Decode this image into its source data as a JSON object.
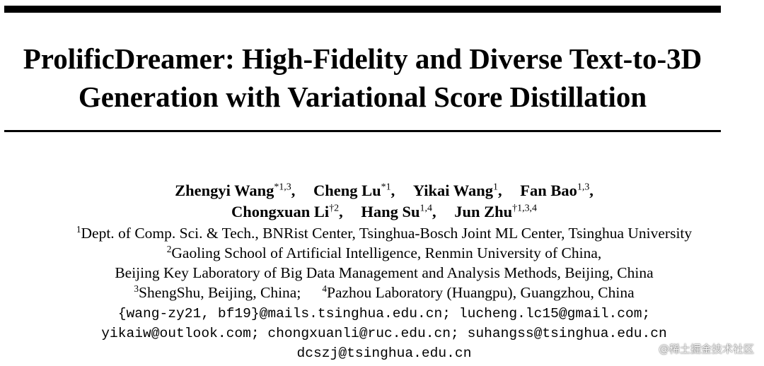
{
  "paper": {
    "title_lines": [
      "ProlificDreamer: High-Fidelity and Diverse Text-to-3D",
      "Generation with Variational Score Distillation"
    ],
    "author_lines": [
      [
        {
          "name": "Zhengyi Wang",
          "sup": "*1,3"
        },
        {
          "name": "Cheng Lu",
          "sup": "*1"
        },
        {
          "name": "Yikai Wang",
          "sup": "1"
        },
        {
          "name": "Fan Bao",
          "sup": "1,3"
        }
      ],
      [
        {
          "name": "Chongxuan Li",
          "sup": "†2"
        },
        {
          "name": "Hang Su",
          "sup": "1,4"
        },
        {
          "name": "Jun Zhu",
          "sup": "†1,3,4"
        }
      ]
    ],
    "affiliations": {
      "a1_sup": "1",
      "a1": "Dept. of Comp. Sci. & Tech., BNRist Center, Tsinghua-Bosch Joint ML Center, Tsinghua University",
      "a2_sup": "2",
      "a2": "Gaoling School of Artificial Intelligence, Renmin University of China,",
      "a2_cont": "Beijing Key Laboratory of Big Data Management and Analysis Methods, Beijing, China",
      "a3_sup": "3",
      "a3": "ShengShu, Beijing, China;",
      "a4_sup": "4",
      "a4": "Pazhou Laboratory (Huangpu), Guangzhou, China"
    },
    "email_lines": [
      "{wang-zy21, bf19}@mails.tsinghua.edu.cn; lucheng.lc15@gmail.com;",
      "yikaiw@outlook.com; chongxuanli@ruc.edu.cn; suhangss@tsinghua.edu.cn",
      "dcszj@tsinghua.edu.cn"
    ]
  },
  "watermark": "@稀土掘金技术社区"
}
